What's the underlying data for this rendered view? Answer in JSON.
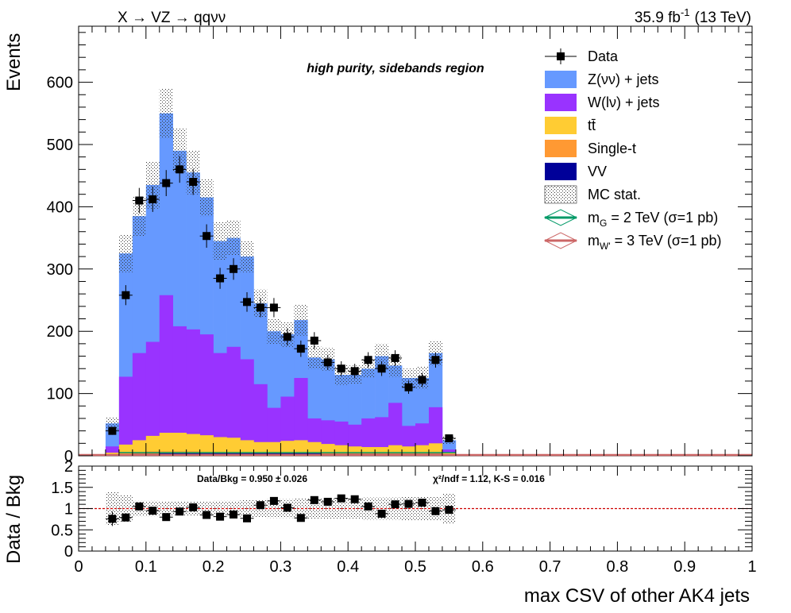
{
  "chart_data": {
    "type": "bar",
    "header": {
      "process": "X → VZ → qqνν",
      "lumi_value": "35.9 fb",
      "lumi_exp": "-1",
      "energy": "(13 TeV)"
    },
    "region_label": "high purity, sidebands region",
    "ylabel": "Events",
    "ratio_ylabel": "Data / Bkg",
    "xlabel": "max CSV of other AK4 jets",
    "xlim": [
      0,
      1
    ],
    "ylim": [
      0,
      690
    ],
    "ratio_ylim": [
      0,
      2
    ],
    "bin_width": 0.02,
    "x_ticks": [
      {
        "v": 0,
        "label": "0"
      },
      {
        "v": 0.1,
        "label": "0.1"
      },
      {
        "v": 0.2,
        "label": "0.2"
      },
      {
        "v": 0.3,
        "label": "0.3"
      },
      {
        "v": 0.4,
        "label": "0.4"
      },
      {
        "v": 0.5,
        "label": "0.5"
      },
      {
        "v": 0.6,
        "label": "0.6"
      },
      {
        "v": 0.7,
        "label": "0.7"
      },
      {
        "v": 0.8,
        "label": "0.8"
      },
      {
        "v": 0.9,
        "label": "0.9"
      },
      {
        "v": 1,
        "label": "1"
      }
    ],
    "y_ticks": [
      {
        "v": 0,
        "label": "0"
      },
      {
        "v": 100,
        "label": "100"
      },
      {
        "v": 200,
        "label": "200"
      },
      {
        "v": 300,
        "label": "300"
      },
      {
        "v": 400,
        "label": "400"
      },
      {
        "v": 500,
        "label": "500"
      },
      {
        "v": 600,
        "label": "600"
      }
    ],
    "ratio_y_ticks": [
      {
        "v": 0,
        "label": "0"
      },
      {
        "v": 0.5,
        "label": "0.5"
      },
      {
        "v": 1,
        "label": "1"
      },
      {
        "v": 1.5,
        "label": "1.5"
      },
      {
        "v": 2,
        "label": "2"
      }
    ],
    "bin_low_edges": [
      0.04,
      0.06,
      0.08,
      0.1,
      0.12,
      0.14,
      0.16,
      0.18,
      0.2,
      0.22,
      0.24,
      0.26,
      0.28,
      0.3,
      0.32,
      0.34,
      0.36,
      0.38,
      0.4,
      0.42,
      0.44,
      0.46,
      0.48,
      0.5,
      0.52,
      0.54,
      0.56
    ],
    "stack_totals": {
      "ZNuNu": [
        52,
        325,
        385,
        435,
        550,
        490,
        455,
        415,
        345,
        350,
        320,
        245,
        200,
        195,
        218,
        158,
        155,
        130,
        130,
        140,
        160,
        145,
        125,
        125,
        165,
        25
      ],
      "WLNu": [
        15,
        127,
        165,
        183,
        258,
        208,
        203,
        195,
        165,
        175,
        155,
        115,
        77,
        95,
        125,
        60,
        57,
        55,
        50,
        60,
        62,
        85,
        48,
        52,
        78,
        10
      ],
      "TTbar": [
        5,
        18,
        25,
        32,
        37,
        37,
        35,
        33,
        30,
        29,
        25,
        22,
        22,
        24,
        25,
        22,
        19,
        17,
        15,
        14,
        14,
        17,
        15,
        17,
        20,
        5
      ],
      "SingleT": [
        2,
        6,
        6,
        7,
        7,
        7,
        7,
        6,
        6,
        6,
        5,
        5,
        5,
        5,
        5,
        4,
        4,
        4,
        4,
        4,
        4,
        4,
        4,
        4,
        5,
        1
      ],
      "VV": [
        1,
        2,
        3,
        3,
        4,
        4,
        4,
        4,
        4,
        4,
        4,
        4,
        4,
        4,
        4,
        4,
        3,
        3,
        3,
        3,
        3,
        3,
        3,
        3,
        3,
        1
      ]
    },
    "mc_stat_error": [
      10,
      30,
      32,
      38,
      40,
      36,
      35,
      30,
      30,
      28,
      25,
      22,
      20,
      20,
      25,
      18,
      18,
      16,
      15,
      15,
      20,
      18,
      15,
      18,
      20,
      6
    ],
    "data": {
      "x": [
        0.05,
        0.07,
        0.09,
        0.11,
        0.13,
        0.15,
        0.17,
        0.19,
        0.21,
        0.23,
        0.25,
        0.27,
        0.29,
        0.31,
        0.33,
        0.35,
        0.37,
        0.39,
        0.41,
        0.43,
        0.45,
        0.47,
        0.49,
        0.51,
        0.53,
        0.55
      ],
      "y": [
        40,
        258,
        410,
        412,
        438,
        460,
        440,
        353,
        285,
        300,
        247,
        238,
        238,
        191,
        172,
        185,
        150,
        140,
        136,
        154,
        140,
        157,
        110,
        122,
        154,
        28
      ]
    },
    "ratio": {
      "x": [
        0.05,
        0.07,
        0.09,
        0.11,
        0.13,
        0.15,
        0.17,
        0.19,
        0.21,
        0.23,
        0.25,
        0.27,
        0.29,
        0.31,
        0.33,
        0.35,
        0.37,
        0.39,
        0.41,
        0.43,
        0.45,
        0.47,
        0.49,
        0.51,
        0.53,
        0.55
      ],
      "y": [
        0.76,
        0.79,
        1.05,
        0.95,
        0.8,
        0.93,
        1.03,
        0.85,
        0.81,
        0.86,
        0.77,
        1.08,
        1.18,
        1.02,
        0.78,
        1.2,
        1.16,
        1.24,
        1.22,
        1.05,
        0.88,
        1.1,
        1.11,
        1.14,
        0.94,
        0.97
      ],
      "band": [
        0.4,
        0.32,
        0.18,
        0.18,
        0.16,
        0.16,
        0.16,
        0.16,
        0.18,
        0.18,
        0.2,
        0.2,
        0.22,
        0.22,
        0.24,
        0.24,
        0.25,
        0.25,
        0.25,
        0.26,
        0.26,
        0.26,
        0.28,
        0.28,
        0.28,
        0.35
      ]
    },
    "reference_line": 1,
    "ratio_stats": {
      "data_bkg": "Data/Bkg = 0.950 ± 0.026",
      "chi2": "χ²/ndf = 1.12,   K-S = 0.016"
    },
    "legend": [
      {
        "key": "data",
        "label": "Data",
        "type": "marker"
      },
      {
        "key": "znunu",
        "label": "Z(νν) + jets",
        "type": "fill",
        "color": "#6699FF"
      },
      {
        "key": "wlnu",
        "label": "W(lν) + jets",
        "type": "fill",
        "color": "#9933FF"
      },
      {
        "key": "ttbar",
        "label": "tt̄",
        "type": "fill",
        "color": "#FFCC33"
      },
      {
        "key": "singlet",
        "label": "Single-t",
        "type": "fill",
        "color": "#FF9933"
      },
      {
        "key": "vv",
        "label": "VV",
        "type": "fill",
        "color": "#000099"
      },
      {
        "key": "mcstat",
        "label": "MC stat.",
        "type": "hatch"
      },
      {
        "key": "sigG",
        "label": "m",
        "sub": "G",
        "rest": " = 2 TeV (σ=1 pb)",
        "type": "line",
        "color": "#009966"
      },
      {
        "key": "sigW",
        "label": "m",
        "sub": "W'",
        "rest": " = 3 TeV (σ=1 pb)",
        "type": "line",
        "color": "#CC6666"
      }
    ],
    "colors": {
      "znunu": "#6699FF",
      "wlnu": "#9933FF",
      "ttbar": "#FFCC33",
      "singlet": "#FF9933",
      "vv": "#000099",
      "sigG": "#009966",
      "sigW": "#CC6666",
      "ref_line": "#CC0000",
      "data": "#000000"
    }
  }
}
